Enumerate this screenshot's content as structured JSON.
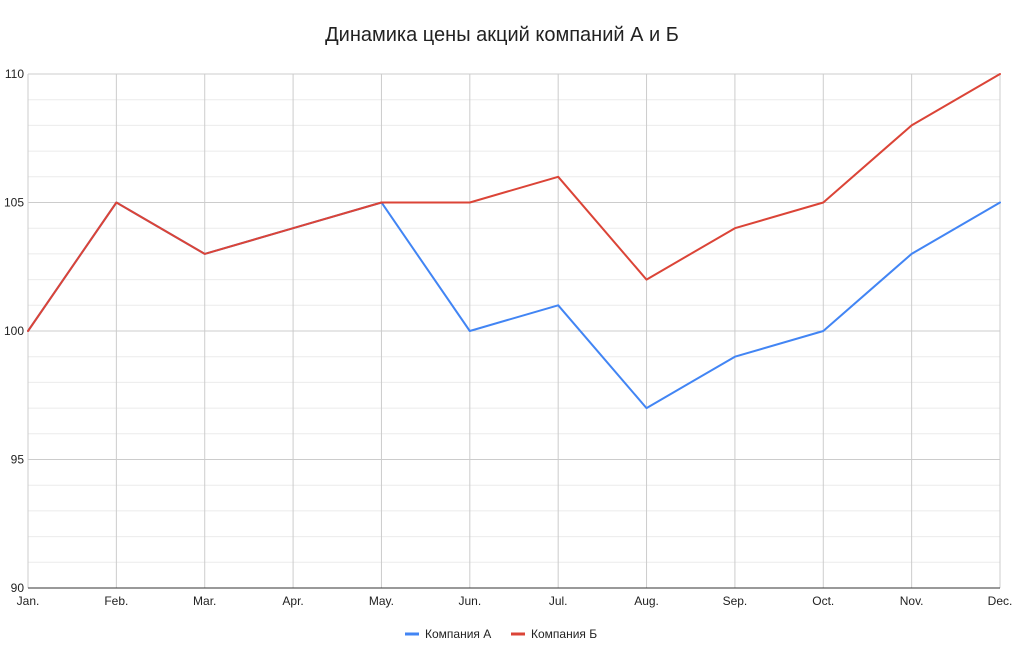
{
  "chart_data": {
    "type": "line",
    "title": "Динамика цены акций компаний А и Б",
    "xlabel": "",
    "ylabel": "",
    "categories": [
      "Jan.",
      "Feb.",
      "Mar.",
      "Apr.",
      "May.",
      "Jun.",
      "Jul.",
      "Aug.",
      "Sep.",
      "Oct.",
      "Nov.",
      "Dec."
    ],
    "series": [
      {
        "name": "Компания А",
        "color": "#4285f4",
        "values": [
          100,
          105,
          103,
          104,
          105,
          100,
          101,
          97,
          99,
          100,
          103,
          105
        ]
      },
      {
        "name": "Компания Б",
        "color": "#db4437",
        "values": [
          100,
          105,
          103,
          104,
          105,
          105,
          106,
          102,
          104,
          105,
          108,
          110
        ]
      }
    ],
    "ylim": [
      90,
      110
    ],
    "yticks": [
      "90",
      "95",
      "100",
      "105",
      "110"
    ],
    "grid": true,
    "legend_position": "bottom"
  }
}
